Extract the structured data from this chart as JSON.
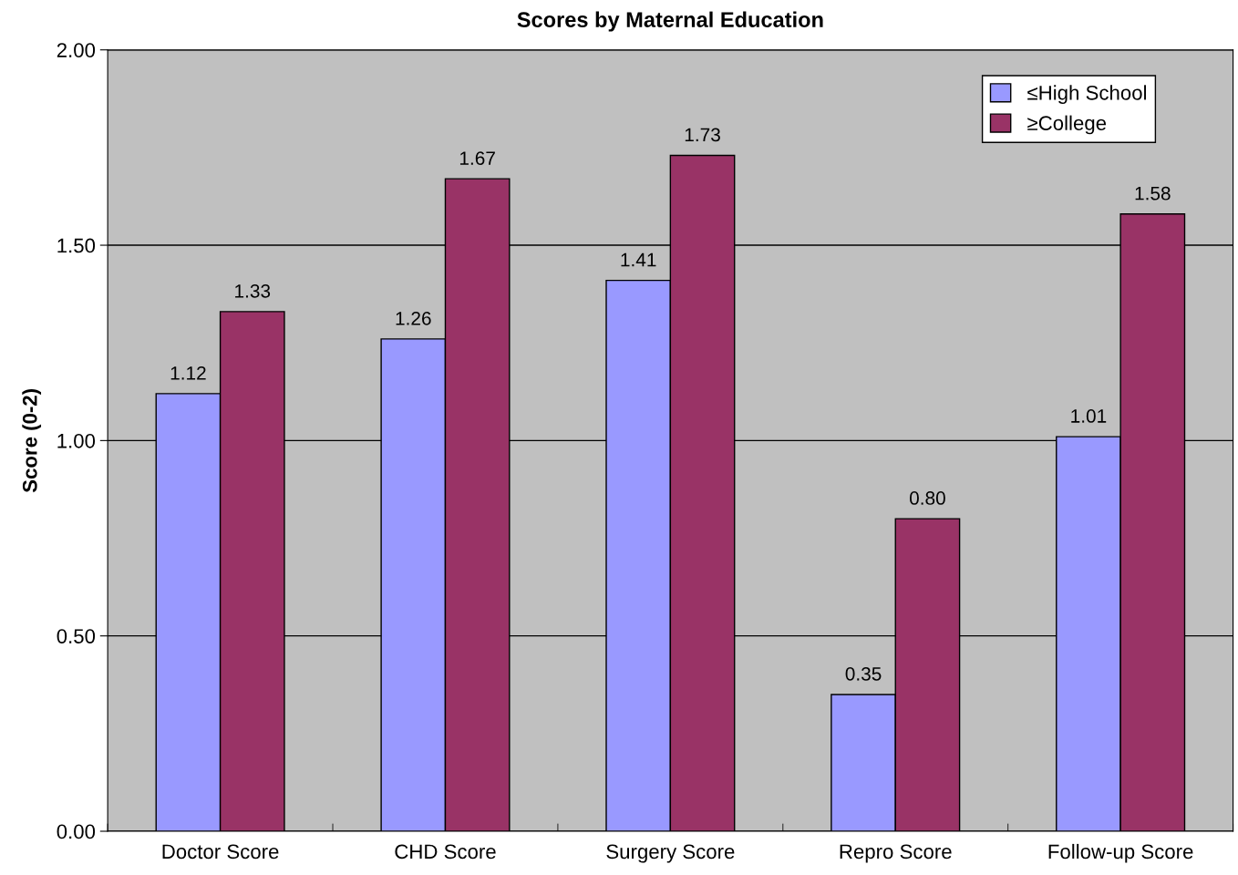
{
  "chart_data": {
    "type": "bar",
    "title": "Scores by Maternal Education",
    "ylabel": "Score (0-2)",
    "categories": [
      "Doctor Score",
      "CHD Score",
      "Surgery Score",
      "Repro Score",
      "Follow-up Score"
    ],
    "series": [
      {
        "name": "≤High School",
        "color": "#9999ff",
        "values": [
          1.12,
          1.26,
          1.41,
          0.35,
          1.01
        ],
        "value_labels": [
          "1.12",
          "1.26",
          "1.41",
          "0.35",
          "1.01"
        ]
      },
      {
        "name": "≥College",
        "color": "#993366",
        "values": [
          1.33,
          1.67,
          1.73,
          0.8,
          1.58
        ],
        "value_labels": [
          "1.33",
          "1.67",
          "1.73",
          "0.80",
          "1.58"
        ]
      }
    ],
    "ylim": [
      0,
      2
    ],
    "yticks": [
      {
        "value": 0,
        "label": "0.00"
      },
      {
        "value": 0.5,
        "label": "0.50"
      },
      {
        "value": 1,
        "label": "1.00"
      },
      {
        "value": 1.5,
        "label": "1.50"
      },
      {
        "value": 2,
        "label": "2.00"
      }
    ],
    "grid": "y",
    "legend": "top right"
  }
}
